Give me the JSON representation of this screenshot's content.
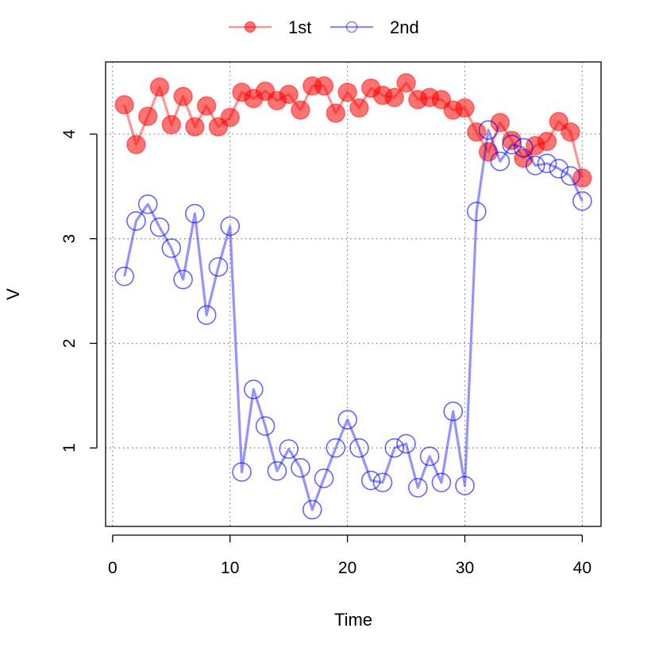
{
  "chart_data": {
    "type": "line",
    "xlabel": "Time",
    "ylabel": "V",
    "xlim": [
      -0.6,
      41.6
    ],
    "ylim": [
      0.25,
      4.69
    ],
    "xticks": [
      0,
      10,
      20,
      30,
      40
    ],
    "yticks": [
      1,
      2,
      3,
      4
    ],
    "grid": true,
    "legend": "top",
    "x": [
      1,
      2,
      3,
      4,
      5,
      6,
      7,
      8,
      9,
      10,
      11,
      12,
      13,
      14,
      15,
      16,
      17,
      18,
      19,
      20,
      21,
      22,
      23,
      24,
      25,
      26,
      27,
      28,
      29,
      30,
      31,
      32,
      33,
      34,
      35,
      36,
      37,
      38,
      39,
      40
    ],
    "series": [
      {
        "name": "1st",
        "color": "#ff0000",
        "marker": "filled-circle",
        "values": [
          4.28,
          3.9,
          4.17,
          4.45,
          4.09,
          4.36,
          4.07,
          4.27,
          4.07,
          4.16,
          4.4,
          4.34,
          4.41,
          4.32,
          4.38,
          4.23,
          4.46,
          4.46,
          4.2,
          4.4,
          4.25,
          4.44,
          4.37,
          4.35,
          4.49,
          4.33,
          4.35,
          4.33,
          4.23,
          4.25,
          4.02,
          3.83,
          4.11,
          3.94,
          3.77,
          3.89,
          3.93,
          4.12,
          4.02,
          3.58
        ]
      },
      {
        "name": "2nd",
        "color": "#0000ff",
        "marker": "open-circle",
        "values": [
          2.64,
          3.17,
          3.33,
          3.11,
          2.91,
          2.61,
          3.24,
          2.27,
          2.73,
          3.12,
          0.77,
          1.56,
          1.21,
          0.78,
          0.99,
          0.81,
          0.41,
          0.71,
          1.0,
          1.27,
          1.0,
          0.69,
          0.67,
          1.0,
          1.04,
          0.62,
          0.92,
          0.67,
          1.35,
          0.64,
          3.26,
          4.04,
          3.74,
          3.9,
          3.87,
          3.7,
          3.72,
          3.67,
          3.6,
          3.36
        ]
      }
    ]
  }
}
